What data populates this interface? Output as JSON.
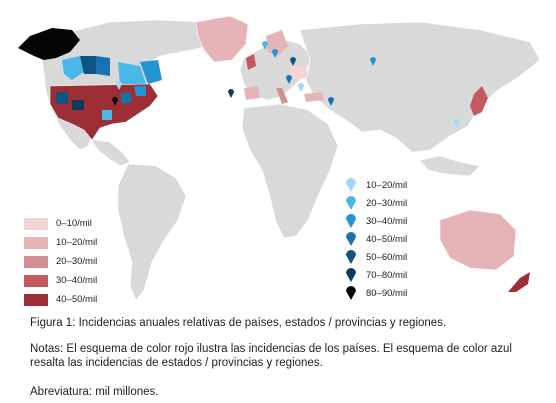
{
  "colors": {
    "land": "#d9d9d9",
    "ocean": "#ffffff",
    "border": "#ffffff",
    "red_scale": [
      "#f3d5d7",
      "#e6b3b7",
      "#d48f95",
      "#c25a60",
      "#9c2f36"
    ],
    "blue_scale": [
      "#9fd9f2",
      "#4bb6e8",
      "#2394d2",
      "#1772ae",
      "#0f557f",
      "#0b3b58",
      "#050505"
    ]
  },
  "legend_countries": {
    "items": [
      {
        "label": "0–10/mil"
      },
      {
        "label": "10–20/mil"
      },
      {
        "label": "20–30/mil"
      },
      {
        "label": "30–40/mil"
      },
      {
        "label": "40–50/mil"
      }
    ]
  },
  "legend_regions": {
    "items": [
      {
        "label": "10–20/mil"
      },
      {
        "label": "20–30/mil"
      },
      {
        "label": "30–40/mil"
      },
      {
        "label": "40–50/mil"
      },
      {
        "label": "50–60/mil"
      },
      {
        "label": "70–80/mil"
      },
      {
        "label": "80–90/mil"
      }
    ]
  },
  "caption": {
    "figure": "Figura 1: Incidencias anuales relativas de países, estados / provincias y regiones.",
    "notes": "Notas: El esquema de color rojo ilustra las incidencias de los países. El esquema de color azul resalta las incidencias de estados / provincias y regiones.",
    "abbreviation": "Abreviatura: mil millones."
  }
}
